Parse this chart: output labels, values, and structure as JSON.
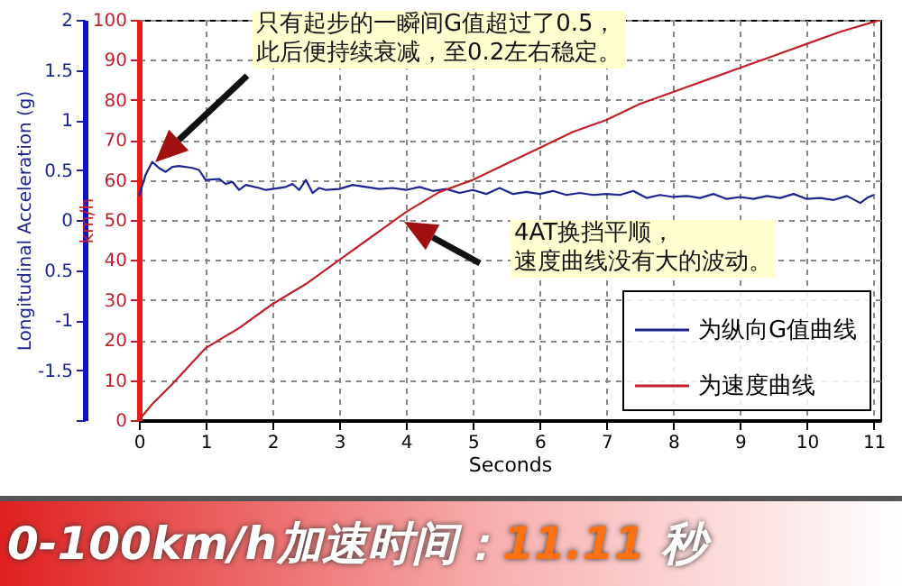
{
  "chart_data": {
    "type": "line",
    "xlabel": "Seconds",
    "ylabel": "km/h",
    "y2label": "Longitudinal Acceleration (g)",
    "xlim": [
      0,
      11.1
    ],
    "xticks": [
      0,
      1,
      2,
      3,
      4,
      5,
      6,
      7,
      8,
      9,
      10,
      11
    ],
    "ylim": [
      0,
      100
    ],
    "yticks": [
      0,
      10,
      20,
      30,
      40,
      50,
      60,
      70,
      80,
      90,
      100
    ],
    "y2lim": [
      -2,
      2
    ],
    "y2ticks": [
      {
        "value": -2,
        "label": null
      },
      -1.5,
      -1,
      {
        "value": -0.5,
        "label": "0.5"
      },
      0,
      0.5,
      1,
      1.5,
      2
    ],
    "grid": true,
    "legend": "bottom right",
    "series": [
      {
        "name": "为纵向G值曲线",
        "color": "#1c2590",
        "axis": "y2",
        "x": [
          0,
          0.1,
          0.2,
          0.3,
          0.4,
          0.5,
          0.6,
          0.8,
          0.9,
          1.0,
          1.2,
          1.3,
          1.4,
          1.5,
          1.6,
          1.8,
          1.9,
          2.0,
          2.2,
          2.3,
          2.4,
          2.5,
          2.6,
          2.7,
          2.8,
          3.0,
          3.2,
          3.4,
          3.6,
          3.8,
          4.0,
          4.2,
          4.4,
          4.6,
          4.8,
          5.0,
          5.2,
          5.4,
          5.6,
          5.8,
          6.0,
          6.2,
          6.4,
          6.6,
          6.8,
          7.0,
          7.2,
          7.4,
          7.6,
          7.8,
          8.0,
          8.2,
          8.4,
          8.6,
          8.8,
          9.0,
          9.2,
          9.4,
          9.6,
          9.8,
          10.0,
          10.2,
          10.4,
          10.6,
          10.8,
          10.9,
          11.0
        ],
        "values": [
          0.24,
          0.45,
          0.58,
          0.52,
          0.48,
          0.53,
          0.54,
          0.52,
          0.5,
          0.4,
          0.41,
          0.36,
          0.38,
          0.3,
          0.35,
          0.32,
          0.3,
          0.31,
          0.33,
          0.36,
          0.3,
          0.4,
          0.27,
          0.32,
          0.3,
          0.31,
          0.35,
          0.33,
          0.31,
          0.32,
          0.3,
          0.33,
          0.29,
          0.31,
          0.27,
          0.3,
          0.26,
          0.32,
          0.26,
          0.28,
          0.26,
          0.29,
          0.25,
          0.27,
          0.25,
          0.26,
          0.25,
          0.29,
          0.22,
          0.25,
          0.23,
          0.24,
          0.22,
          0.26,
          0.21,
          0.23,
          0.21,
          0.24,
          0.22,
          0.26,
          0.21,
          0.22,
          0.2,
          0.24,
          0.17,
          0.22,
          0.25
        ]
      },
      {
        "name": "为速度曲线",
        "color": "#c0202a",
        "axis": "y",
        "x": [
          0,
          0.2,
          0.5,
          1,
          1.5,
          2,
          2.5,
          3,
          3.5,
          4,
          4.5,
          5,
          5.5,
          6,
          6.5,
          7,
          7.5,
          8,
          8.5,
          9,
          9.5,
          10,
          10.5,
          11.1
        ],
        "values": [
          0,
          4,
          9,
          18,
          23,
          29,
          34,
          40,
          46,
          52,
          57,
          60,
          64,
          68,
          72,
          75,
          79,
          82,
          85,
          88,
          91,
          94,
          97,
          100
        ]
      }
    ],
    "annotations": [
      "只有起步的一瞬间G值超过了0.5，此后便持续衰减，至0.2左右稳定。",
      "4AT换挡平顺，速度曲线没有大的波动。",
      "0-100km/h加速时间：11.11 秒"
    ]
  }
}
